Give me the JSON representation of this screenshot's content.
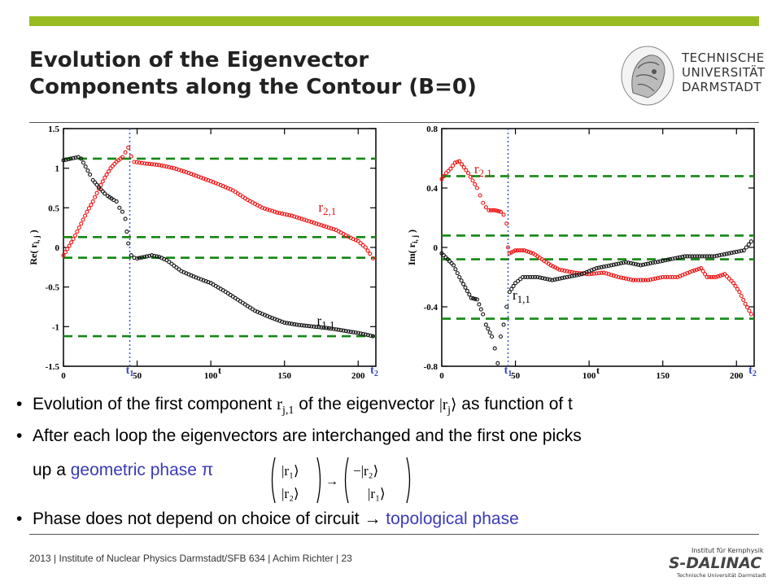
{
  "slide": {
    "title_line1": "Evolution of the Eigenvector",
    "title_line2": "Components along the Contour (B=0)",
    "logo": {
      "line1": "TECHNISCHE",
      "line2": "UNIVERSITÄT",
      "line3": "DARMSTADT"
    },
    "bullets": {
      "b1_pre": "Evolution of the first component ",
      "b1_sym": "r",
      "b1_sub": "j,1",
      "b1_mid": " of the eigenvector ",
      "b1_ket": "|r",
      "b1_ket_sub": "j",
      "b1_ket_close": "⟩",
      "b1_post": " as function of t",
      "b2": "After each loop the eigenvectors are interchanged and the first one picks",
      "b3_pre": "up a ",
      "b3_blue": "geometric phase π",
      "b4_pre": "Phase does not depend on choice of circuit ",
      "b4_arrow": "→",
      "b4_blue": "topological phase"
    },
    "matrix": {
      "left_top": "|r₁⟩",
      "left_bottom": "|r₂⟩",
      "arrow": "→",
      "right_top": "−|r₂⟩",
      "right_bottom": "|r₁⟩"
    },
    "footer": "2013  |  Institute of Nuclear Physics Darmstadt/SFB 634  |  Achim Richter  |  23",
    "footer_logo": {
      "line1": "Institut für Kernphysik",
      "line2": "S-DALINAC",
      "line3": "Technische Universität Darmstadt"
    }
  },
  "chart_data": [
    {
      "type": "scatter",
      "ylabel": "Re( r",
      "ylabel_sub": "i, j",
      "ylabel_close": " )",
      "xlabel": "t",
      "xlim": [
        0,
        212
      ],
      "ylim": [
        -1.5,
        1.5
      ],
      "xticks": [
        0,
        50,
        100,
        150,
        200
      ],
      "yticks": [
        1.5,
        1,
        0.5,
        0,
        -0.5,
        -1,
        -1.5
      ],
      "ytick_labels": [
        "1.5",
        "1",
        "0.5",
        "0",
        "-0.5",
        "-1",
        "-1.5"
      ],
      "hlines": [
        1.12,
        0.13,
        -0.13,
        -1.12
      ],
      "vline": 45,
      "t1": "t",
      "t1_sub": "1",
      "t2": "t",
      "t2_sub": "2",
      "colors": {
        "r21": "#ee1111",
        "r11": "#111111",
        "hline": "#118811",
        "vline": "#3355dd"
      },
      "series": [
        {
          "name": "r",
          "sub": "2,1",
          "label_at": [
            173,
            0.45
          ],
          "points": [
            [
              0,
              -0.1
            ],
            [
              4,
              0.02
            ],
            [
              8,
              0.15
            ],
            [
              12,
              0.3
            ],
            [
              16,
              0.45
            ],
            [
              20,
              0.58
            ],
            [
              24,
              0.74
            ],
            [
              28,
              0.88
            ],
            [
              32,
              1.0
            ],
            [
              36,
              1.08
            ],
            [
              40,
              1.14
            ],
            [
              42,
              1.2
            ],
            [
              44,
              1.26
            ],
            [
              46,
              1.15
            ],
            [
              48,
              1.08
            ],
            [
              55,
              1.06
            ],
            [
              65,
              1.04
            ],
            [
              75,
              1.0
            ],
            [
              85,
              0.94
            ],
            [
              95,
              0.87
            ],
            [
              105,
              0.8
            ],
            [
              115,
              0.72
            ],
            [
              125,
              0.6
            ],
            [
              135,
              0.5
            ],
            [
              145,
              0.44
            ],
            [
              155,
              0.4
            ],
            [
              165,
              0.34
            ],
            [
              175,
              0.28
            ],
            [
              185,
              0.22
            ],
            [
              195,
              0.12
            ],
            [
              200,
              0.08
            ],
            [
              205,
              0.0
            ],
            [
              208,
              -0.08
            ],
            [
              210,
              -0.14
            ]
          ]
        },
        {
          "name": "r",
          "sub": "1,1",
          "label_at": [
            172,
            -0.98
          ],
          "points": [
            [
              0,
              1.1
            ],
            [
              5,
              1.12
            ],
            [
              10,
              1.14
            ],
            [
              12,
              1.12
            ],
            [
              15,
              1.02
            ],
            [
              18,
              0.92
            ],
            [
              20,
              0.85
            ],
            [
              24,
              0.76
            ],
            [
              28,
              0.68
            ],
            [
              30,
              0.65
            ],
            [
              34,
              0.6
            ],
            [
              36,
              0.58
            ],
            [
              38,
              0.5
            ],
            [
              40,
              0.45
            ],
            [
              42,
              0.36
            ],
            [
              43,
              0.2
            ],
            [
              44,
              0.05
            ],
            [
              46,
              -0.1
            ],
            [
              48,
              -0.13
            ],
            [
              50,
              -0.14
            ],
            [
              55,
              -0.12
            ],
            [
              60,
              -0.1
            ],
            [
              65,
              -0.12
            ],
            [
              70,
              -0.16
            ],
            [
              80,
              -0.3
            ],
            [
              90,
              -0.38
            ],
            [
              100,
              -0.45
            ],
            [
              110,
              -0.56
            ],
            [
              120,
              -0.68
            ],
            [
              130,
              -0.8
            ],
            [
              140,
              -0.88
            ],
            [
              150,
              -0.95
            ],
            [
              160,
              -0.98
            ],
            [
              170,
              -1.0
            ],
            [
              180,
              -1.02
            ],
            [
              190,
              -1.05
            ],
            [
              200,
              -1.08
            ],
            [
              210,
              -1.12
            ]
          ]
        }
      ]
    },
    {
      "type": "scatter",
      "ylabel": "Im( r",
      "ylabel_sub": "i, j",
      "ylabel_close": " )",
      "xlabel": "t",
      "xlim": [
        0,
        212
      ],
      "ylim": [
        -0.8,
        0.8
      ],
      "xticks": [
        0,
        50,
        100,
        150,
        200
      ],
      "yticks": [
        0.8,
        0.4,
        0,
        -0.4,
        -0.8
      ],
      "ytick_labels": [
        "0.8",
        "0.4",
        "0",
        "-0.4",
        "-0.8"
      ],
      "hlines": [
        0.48,
        0.08,
        -0.08,
        -0.48
      ],
      "vline": 45,
      "t1": "t",
      "t1_sub": "1",
      "t2": "t",
      "t2_sub": "2",
      "colors": {
        "r21": "#ee1111",
        "r11": "#111111",
        "hline": "#118811",
        "vline": "#3355dd"
      },
      "series": [
        {
          "name": "r",
          "sub": "2,1",
          "label_at": [
            22,
            0.5
          ],
          "points": [
            [
              0,
              0.46
            ],
            [
              3,
              0.5
            ],
            [
              6,
              0.53
            ],
            [
              9,
              0.57
            ],
            [
              12,
              0.58
            ],
            [
              15,
              0.54
            ],
            [
              18,
              0.5
            ],
            [
              21,
              0.45
            ],
            [
              24,
              0.4
            ],
            [
              26,
              0.35
            ],
            [
              28,
              0.3
            ],
            [
              30,
              0.27
            ],
            [
              32,
              0.25
            ],
            [
              36,
              0.25
            ],
            [
              40,
              0.24
            ],
            [
              42,
              0.22
            ],
            [
              44,
              0.16
            ],
            [
              45,
              0.0
            ],
            [
              46,
              -0.04
            ],
            [
              50,
              -0.02
            ],
            [
              56,
              -0.02
            ],
            [
              62,
              -0.04
            ],
            [
              68,
              -0.08
            ],
            [
              74,
              -0.12
            ],
            [
              80,
              -0.15
            ],
            [
              90,
              -0.17
            ],
            [
              100,
              -0.18
            ],
            [
              110,
              -0.17
            ],
            [
              120,
              -0.2
            ],
            [
              130,
              -0.22
            ],
            [
              140,
              -0.22
            ],
            [
              150,
              -0.2
            ],
            [
              160,
              -0.2
            ],
            [
              170,
              -0.16
            ],
            [
              176,
              -0.14
            ],
            [
              180,
              -0.2
            ],
            [
              186,
              -0.2
            ],
            [
              192,
              -0.18
            ],
            [
              198,
              -0.24
            ],
            [
              202,
              -0.3
            ],
            [
              206,
              -0.38
            ],
            [
              210,
              -0.45
            ]
          ]
        },
        {
          "name": "r",
          "sub": "1,1",
          "label_at": [
            48,
            -0.35
          ],
          "points": [
            [
              0,
              -0.04
            ],
            [
              4,
              -0.08
            ],
            [
              8,
              -0.12
            ],
            [
              12,
              -0.2
            ],
            [
              16,
              -0.27
            ],
            [
              20,
              -0.34
            ],
            [
              24,
              -0.35
            ],
            [
              28,
              -0.45
            ],
            [
              30,
              -0.52
            ],
            [
              34,
              -0.6
            ],
            [
              36,
              -0.68
            ],
            [
              38,
              -0.78
            ],
            [
              40,
              -0.6
            ],
            [
              42,
              -0.52
            ],
            [
              44,
              -0.4
            ],
            [
              46,
              -0.3
            ],
            [
              50,
              -0.24
            ],
            [
              55,
              -0.2
            ],
            [
              65,
              -0.2
            ],
            [
              75,
              -0.22
            ],
            [
              85,
              -0.2
            ],
            [
              95,
              -0.18
            ],
            [
              105,
              -0.14
            ],
            [
              115,
              -0.12
            ],
            [
              125,
              -0.1
            ],
            [
              135,
              -0.12
            ],
            [
              145,
              -0.1
            ],
            [
              155,
              -0.08
            ],
            [
              165,
              -0.06
            ],
            [
              175,
              -0.06
            ],
            [
              185,
              -0.06
            ],
            [
              195,
              -0.04
            ],
            [
              205,
              -0.02
            ],
            [
              210,
              0.04
            ]
          ]
        }
      ]
    }
  ]
}
